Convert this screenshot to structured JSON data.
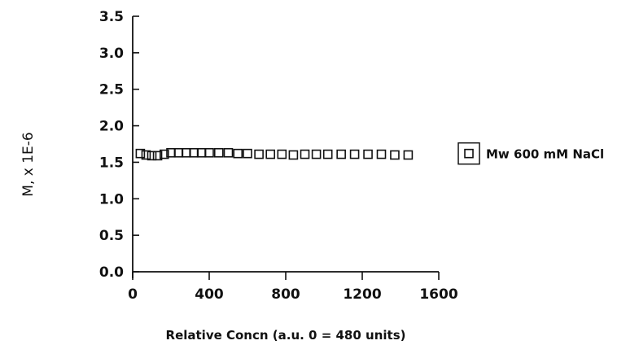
{
  "chart_data": {
    "type": "scatter",
    "title": "",
    "xlabel": "Relative Concn  (a.u. 0 = 480 units)",
    "ylabel": "M, x 1E-6",
    "xlim": [
      0,
      1600
    ],
    "ylim": [
      0,
      3.5
    ],
    "x_ticks": [
      0,
      400,
      800,
      1200,
      1600
    ],
    "x_tick_labels": [
      "0",
      "400",
      "800",
      "1200",
      "1600"
    ],
    "y_ticks": [
      0.0,
      0.5,
      1.0,
      1.5,
      2.0,
      2.5,
      3.0,
      3.5
    ],
    "y_tick_labels": [
      "0.0",
      "0.5",
      "1.0",
      "1.5",
      "2.0",
      "2.5",
      "3.0",
      "3.5"
    ],
    "grid": false,
    "legend_position": "right",
    "marker": "open-square",
    "series": [
      {
        "name": "Mw 600 mM NaCl",
        "x": [
          40,
          70,
          100,
          130,
          165,
          200,
          240,
          280,
          320,
          360,
          400,
          450,
          500,
          550,
          600,
          660,
          720,
          780,
          840,
          900,
          960,
          1020,
          1090,
          1160,
          1230,
          1300,
          1370,
          1440
        ],
        "y": [
          1.62,
          1.6,
          1.59,
          1.59,
          1.61,
          1.63,
          1.63,
          1.63,
          1.63,
          1.63,
          1.63,
          1.63,
          1.63,
          1.62,
          1.62,
          1.61,
          1.61,
          1.61,
          1.6,
          1.61,
          1.61,
          1.61,
          1.61,
          1.61,
          1.61,
          1.61,
          1.6,
          1.6
        ]
      }
    ]
  },
  "colors": {
    "ink": "#111111",
    "background": "#ffffff"
  }
}
